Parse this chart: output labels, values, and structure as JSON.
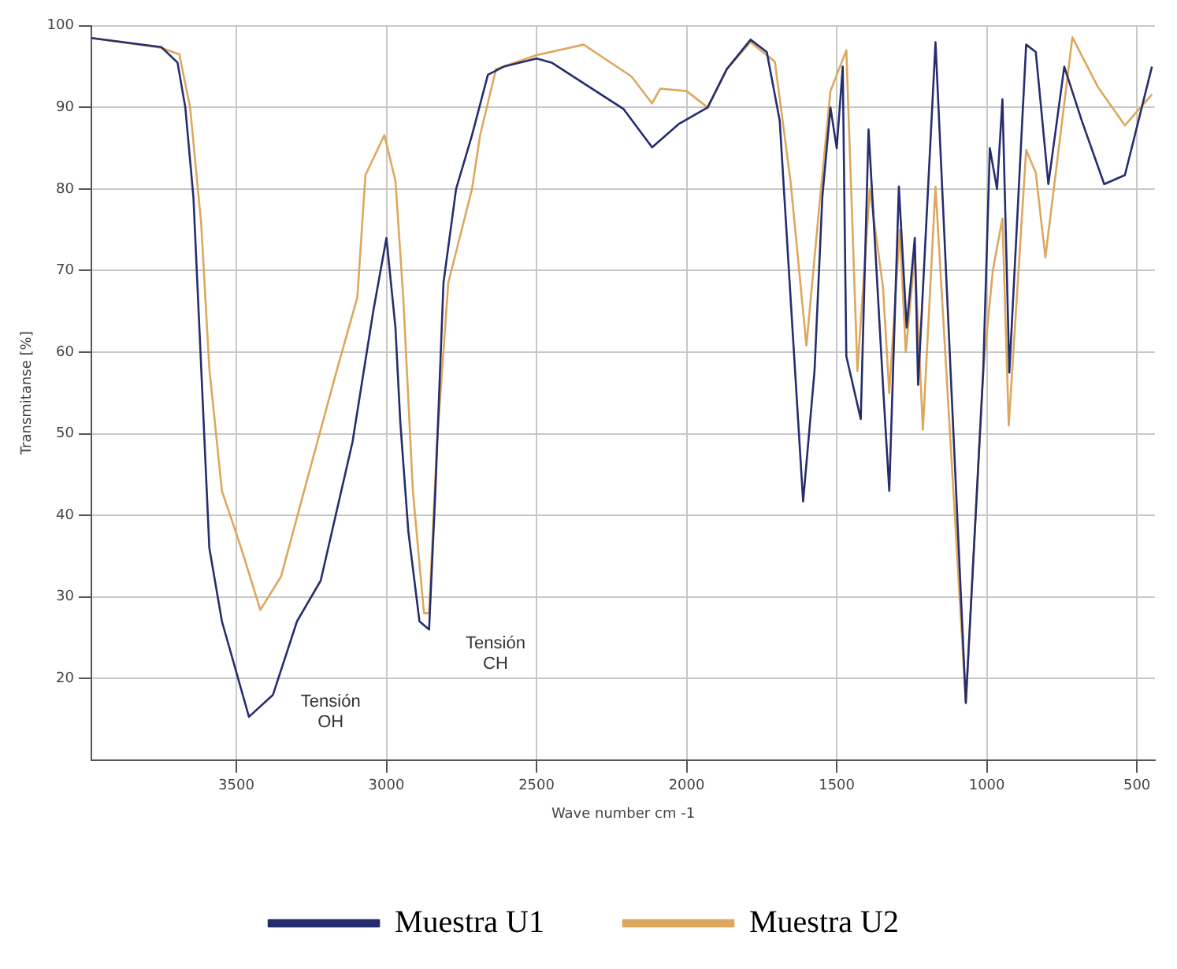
{
  "chart_data": {
    "type": "line",
    "xlabel": "Wave number cm -1",
    "ylabel": "Transmitanse [%]",
    "xlim": [
      3983,
      440
    ],
    "xticks": [
      3500,
      3000,
      2500,
      2000,
      1500,
      1000,
      500
    ],
    "ylim": [
      10,
      100
    ],
    "yticks": [
      20,
      30,
      40,
      50,
      60,
      70,
      80,
      90,
      100
    ],
    "grid": true,
    "legend": "bottom",
    "marker": "none",
    "line_style": "solid",
    "annotations": [
      "Tensión OH",
      "Tensión CH"
    ],
    "series": [
      {
        "name": "Muestra U1",
        "color": "#252d6e",
        "x": [
          3983,
          3750,
          3696,
          3670,
          3643,
          3617,
          3590,
          3548,
          3458,
          3378,
          3298,
          3219,
          3113,
          3044,
          3000,
          2970,
          2954,
          2927,
          2890,
          2858,
          2837,
          2810,
          2768,
          2715,
          2662,
          2609,
          2500,
          2450,
          2210,
          2115,
          2025,
          1930,
          1866,
          1787,
          1733,
          1690,
          1654,
          1612,
          1574,
          1548,
          1521,
          1500,
          1480,
          1468,
          1420,
          1394,
          1346,
          1325,
          1293,
          1267,
          1240,
          1229,
          1171,
          1070,
          1012,
          990,
          966,
          948,
          925,
          869,
          837,
          795,
          742,
          684,
          609,
          540,
          450
        ],
        "values": [
          98.5,
          97.4,
          95.5,
          90,
          79,
          58,
          36,
          27,
          15.3,
          18,
          27,
          32,
          49,
          65,
          74,
          63,
          51.5,
          38,
          27,
          26,
          43,
          68.5,
          80,
          86.6,
          94,
          95,
          96,
          95.5,
          89.8,
          85.1,
          88,
          90,
          94.7,
          98.3,
          96.8,
          88.4,
          66.8,
          41.7,
          57.7,
          79,
          90,
          85,
          95,
          59.5,
          51.8,
          87.3,
          56,
          43,
          80.3,
          63,
          74,
          56,
          98,
          17,
          57.7,
          85,
          80,
          91,
          57.5,
          97.7,
          96.8,
          80.6,
          95,
          88.4,
          80.6,
          81.7,
          95
        ]
      },
      {
        "name": "Muestra U2",
        "color": "#dda75e",
        "x": [
          3983,
          3750,
          3690,
          3654,
          3617,
          3590,
          3548,
          3484,
          3420,
          3351,
          3272,
          3166,
          3097,
          3070,
          3007,
          2970,
          2944,
          2912,
          2875,
          2858,
          2832,
          2794,
          2715,
          2688,
          2635,
          2500,
          2343,
          2184,
          2115,
          2088,
          2000,
          1930,
          1866,
          1787,
          1706,
          1654,
          1601,
          1559,
          1521,
          1468,
          1431,
          1390,
          1346,
          1325,
          1290,
          1270,
          1240,
          1213,
          1171,
          1070,
          1012,
          980,
          948,
          927,
          869,
          837,
          805,
          715,
          630,
          540,
          450
        ],
        "values": [
          98.5,
          97.3,
          96.5,
          90,
          75.7,
          58,
          43,
          36,
          28.4,
          32.5,
          43.3,
          57.7,
          66.7,
          81.7,
          86.6,
          81,
          66.7,
          43,
          28,
          28,
          48.7,
          68.5,
          80,
          86.6,
          94.7,
          96.4,
          97.7,
          93.8,
          90.5,
          92.3,
          92,
          90,
          94.7,
          98,
          95.6,
          81,
          60.8,
          77.5,
          92,
          97,
          57.7,
          80,
          68,
          55,
          75,
          60,
          72,
          50.5,
          80.3,
          17,
          57.7,
          70,
          76.4,
          51,
          84.8,
          82,
          71.6,
          98.6,
          92.5,
          87.8,
          91.6
        ]
      }
    ]
  }
}
